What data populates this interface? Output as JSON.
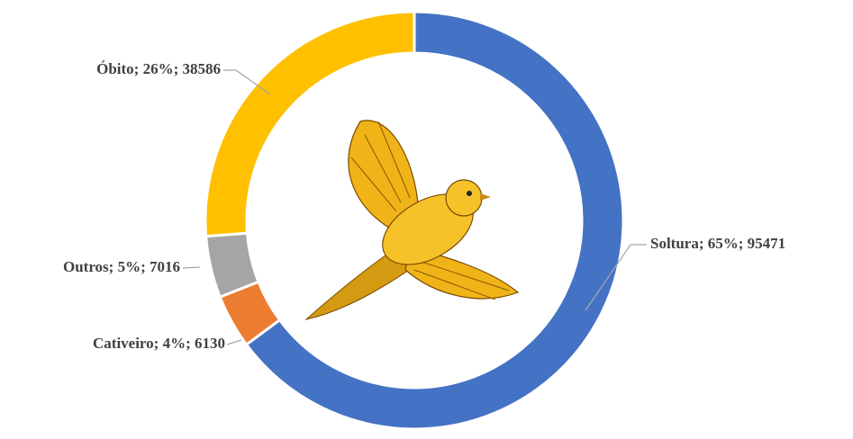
{
  "chart_data": {
    "type": "donut",
    "values": [
      95471,
      6130,
      7016,
      38586
    ],
    "value_labels": [
      "Soltura; 65%; 95471",
      "Cativeiro; 4%; 6130",
      "Outros; 5%; 7016",
      "Óbito; 26%; 38586"
    ],
    "colors": [
      "#4472c4",
      "#ed7d31",
      "#a5a5a5",
      "#ffc000"
    ]
  }
}
